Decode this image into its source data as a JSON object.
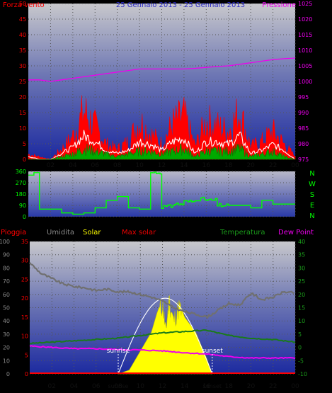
{
  "header": {
    "wind_label": "Forza vento",
    "title": "25 Gennaio 2013 - 25 Gennaio 2013",
    "pressure_label": "Pressione"
  },
  "colors": {
    "wind": "#ff0000",
    "gust": "#ff0000",
    "wind_green": "#00aa00",
    "wind_white": "#ffffff",
    "pressure": "#ee00ee",
    "direction": "#00ff00",
    "rain": "#ff0000",
    "humidity": "#888888",
    "solar": "#ffff00",
    "max_solar": "#ffffff",
    "temperature": "#1a7a1a",
    "dewpoint": "#ee00ee"
  },
  "chart_data": [
    {
      "type": "line",
      "name": "wind-pressure",
      "x_ticks": [
        "02",
        "04",
        "06",
        "08",
        "10",
        "12",
        "14",
        "16",
        "18",
        "20",
        "22",
        "00"
      ],
      "ylim_left": [
        0,
        50
      ],
      "yticks_left": [
        0,
        5,
        10,
        15,
        20,
        25,
        30,
        35,
        40,
        45,
        50
      ],
      "ylim_right": [
        975,
        1025
      ],
      "yticks_right": [
        975,
        980,
        985,
        990,
        995,
        1000,
        1005,
        1010,
        1015,
        1020,
        1025
      ],
      "series": [
        {
          "name": "Forza vento",
          "role": "gust",
          "x": [
            0,
            1,
            2,
            3,
            4,
            5,
            6,
            7,
            8,
            9,
            10,
            11,
            12,
            13,
            14,
            15,
            16,
            17,
            18,
            19,
            20,
            21,
            22,
            23,
            24
          ],
          "values": [
            2,
            1,
            0,
            4,
            9,
            19,
            13,
            6,
            4,
            7,
            15,
            10,
            6,
            14,
            17,
            5,
            15,
            13,
            11,
            19,
            5,
            7,
            11,
            6,
            1
          ]
        },
        {
          "name": "",
          "role": "avg",
          "x": [
            0,
            1,
            2,
            3,
            4,
            5,
            6,
            7,
            8,
            9,
            10,
            11,
            12,
            13,
            14,
            15,
            16,
            17,
            18,
            19,
            20,
            21,
            22,
            23,
            24
          ],
          "values": [
            1,
            0,
            0,
            2,
            4,
            8,
            6,
            3,
            2,
            3,
            6,
            5,
            3,
            6,
            7,
            2,
            6,
            6,
            5,
            8,
            2,
            3,
            5,
            3,
            0
          ]
        },
        {
          "name": "",
          "role": "base",
          "x": [
            0,
            1,
            2,
            3,
            4,
            5,
            6,
            7,
            8,
            9,
            10,
            11,
            12,
            13,
            14,
            15,
            16,
            17,
            18,
            19,
            20,
            21,
            22,
            23,
            24
          ],
          "values": [
            0,
            0,
            0,
            1,
            2,
            4,
            3,
            2,
            1,
            2,
            3,
            3,
            2,
            3,
            4,
            1,
            3,
            3,
            3,
            4,
            1,
            2,
            3,
            1,
            0
          ]
        },
        {
          "name": "Pressione",
          "role": "pressure",
          "x": [
            0,
            1,
            2,
            3,
            4,
            5,
            6,
            7,
            8,
            9,
            10,
            11,
            12,
            13,
            14,
            15,
            16,
            17,
            18,
            19,
            20,
            21,
            22,
            23,
            24
          ],
          "values": [
            1000.5,
            1000.5,
            1000,
            1000.5,
            1001,
            1001.5,
            1002,
            1002.5,
            1003,
            1003.5,
            1004,
            1004,
            1004,
            1004,
            1004,
            1004.2,
            1004.5,
            1004.8,
            1005,
            1005.5,
            1006,
            1006.5,
            1007,
            1007.3,
            1007.5
          ]
        }
      ]
    },
    {
      "type": "line",
      "name": "wind-direction",
      "x_ticks": [
        "02",
        "04",
        "06",
        "08",
        "10",
        "12",
        "14",
        "16",
        "18",
        "20",
        "22",
        "00"
      ],
      "ylim": [
        0,
        360
      ],
      "yticks": [
        0,
        90,
        180,
        270,
        360
      ],
      "compass": [
        "N",
        "W",
        "S",
        "E",
        "N"
      ],
      "series": [
        {
          "name": "",
          "x": [
            0,
            0.5,
            1,
            2,
            3,
            4,
            5,
            6,
            7,
            8,
            9,
            10,
            10.7,
            11,
            12,
            13,
            14,
            15,
            16,
            17,
            18,
            19,
            20,
            21,
            22,
            23,
            24
          ],
          "values": [
            330,
            350,
            60,
            60,
            30,
            20,
            30,
            70,
            130,
            160,
            70,
            60,
            60,
            350,
            80,
            100,
            120,
            140,
            130,
            90,
            90,
            90,
            70,
            130,
            100,
            100,
            100
          ]
        }
      ]
    },
    {
      "type": "line",
      "name": "rain-humidity-solar-temperature",
      "legend": [
        "Pioggia",
        "Umidita",
        "Solar",
        "Max solar",
        "Temperatura",
        "Dew Point"
      ],
      "x_ticks": [
        "02",
        "04",
        "06",
        "08",
        "10",
        "12",
        "14",
        "16",
        "18",
        "20",
        "22",
        "00"
      ],
      "ylim_humidity": [
        0,
        100
      ],
      "yticks_humidity": [
        0,
        10,
        20,
        30,
        40,
        50,
        60,
        70,
        80,
        90,
        100
      ],
      "ylim_rain": [
        0,
        35
      ],
      "yticks_rain": [
        0,
        5,
        10,
        15,
        20,
        25,
        30,
        35
      ],
      "ylim_temp": [
        -10,
        40
      ],
      "yticks_temp": [
        -10,
        -5,
        0,
        5,
        10,
        15,
        20,
        25,
        30,
        35,
        40
      ],
      "annotations": [
        "sunrise",
        "sunset"
      ],
      "series": [
        {
          "name": "Umidita",
          "x": [
            0,
            1,
            2,
            3,
            4,
            5,
            6,
            7,
            8,
            9,
            10,
            11,
            12,
            13,
            14,
            15,
            16,
            16.5,
            17,
            18,
            19,
            20,
            21,
            22,
            23,
            24
          ],
          "values": [
            84,
            76,
            72,
            68,
            66,
            65,
            63,
            64,
            62,
            62,
            60,
            58,
            55,
            50,
            47,
            45,
            43,
            45,
            48,
            53,
            52,
            61,
            56,
            58,
            62,
            61
          ]
        },
        {
          "name": "Temperatura",
          "x": [
            0,
            2,
            4,
            6,
            8,
            10,
            12,
            14,
            16,
            18,
            20,
            22,
            24
          ],
          "values": [
            1.5,
            2,
            2.5,
            3,
            3.5,
            4.5,
            5.5,
            6,
            6.5,
            4.5,
            3.5,
            3,
            2
          ]
        },
        {
          "name": "Dew Point",
          "x": [
            0,
            2,
            4,
            6,
            8,
            10,
            12,
            14,
            16,
            18,
            20,
            22,
            24
          ],
          "values": [
            0.5,
            0,
            -0.5,
            -0.5,
            -0.8,
            -1,
            -1.3,
            -2,
            -2.5,
            -3.5,
            -4,
            -4,
            -4
          ]
        },
        {
          "name": "Solar",
          "x": [
            8,
            9,
            10,
            11,
            11.5,
            12,
            12.3,
            12.6,
            13,
            13.5,
            14,
            15,
            16,
            16.5
          ],
          "values": [
            0,
            1,
            6,
            11,
            16,
            20,
            12,
            21,
            15,
            19,
            15,
            11,
            4,
            0
          ]
        },
        {
          "name": "Max solar",
          "x": [
            8,
            9,
            10,
            11,
            12,
            13,
            14,
            15,
            16,
            16.5
          ],
          "values": [
            0,
            4,
            11,
            17,
            20,
            20,
            17,
            11,
            4,
            0
          ]
        },
        {
          "name": "Pioggia",
          "x": [
            0,
            24
          ],
          "values": [
            0,
            0
          ]
        }
      ],
      "sunrise_hour": 8,
      "sunset_hour": 16.5
    }
  ]
}
